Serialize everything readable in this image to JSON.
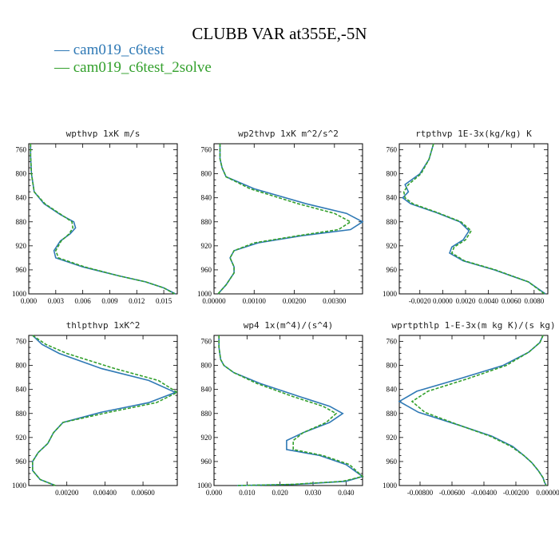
{
  "title": "CLUBB VAR at355E,-5N",
  "legend": [
    {
      "label": "cam019_c6test",
      "color": "#2f79b5",
      "dash": "solid"
    },
    {
      "label": "cam019_c6test_2solve",
      "color": "#33a02c",
      "dash": "dashed"
    }
  ],
  "chart_data": [
    {
      "type": "line",
      "title": "wpthvp  1xK m/s",
      "xlim": [
        0.0,
        0.0165
      ],
      "ylim": [
        750,
        1000
      ],
      "y_ticks": [
        "760",
        "800",
        "840",
        "880",
        "920",
        "960",
        "1000"
      ],
      "x_ticks": [
        {
          "v": 0.0,
          "label": "0.000"
        },
        {
          "v": 0.003,
          "label": "0.003"
        },
        {
          "v": 0.006,
          "label": "0.006"
        },
        {
          "v": 0.009,
          "label": "0.009"
        },
        {
          "v": 0.012,
          "label": "0.012"
        },
        {
          "v": 0.015,
          "label": "0.015"
        }
      ],
      "series": [
        {
          "name": "cam019_c6test",
          "x": [
            0.0002,
            0.0002,
            0.0003,
            0.0006,
            0.0017,
            0.0035,
            0.005,
            0.0052,
            0.0046,
            0.0035,
            0.0028,
            0.003,
            0.006,
            0.01,
            0.013,
            0.015,
            0.0163
          ],
          "y": [
            750,
            770,
            800,
            830,
            850,
            868,
            880,
            890,
            900,
            912,
            928,
            940,
            955,
            970,
            980,
            990,
            1000
          ]
        },
        {
          "name": "cam019_c6test_2solve",
          "x": [
            0.0002,
            0.0002,
            0.0003,
            0.0006,
            0.0018,
            0.0036,
            0.0048,
            0.0049,
            0.0045,
            0.0036,
            0.003,
            0.0033,
            0.0062,
            0.01,
            0.013,
            0.015,
            0.0162
          ],
          "y": [
            750,
            770,
            800,
            830,
            850,
            868,
            880,
            890,
            900,
            912,
            928,
            940,
            955,
            970,
            980,
            990,
            1000
          ]
        }
      ]
    },
    {
      "type": "line",
      "title": "wp2thvp  1xK m^2/s^2",
      "xlim": [
        0.0,
        0.0037
      ],
      "ylim": [
        750,
        1000
      ],
      "y_ticks": [
        "760",
        "800",
        "840",
        "880",
        "920",
        "960",
        "1000"
      ],
      "x_ticks": [
        {
          "v": 0.0,
          "label": "0.00000"
        },
        {
          "v": 0.001,
          "label": "0.00100"
        },
        {
          "v": 0.002,
          "label": "0.00200"
        },
        {
          "v": 0.003,
          "label": "0.00300"
        }
      ],
      "series": [
        {
          "name": "cam019_c6test",
          "x": [
            0.00015,
            0.00015,
            0.0002,
            0.0003,
            0.001,
            0.0023,
            0.0033,
            0.0037,
            0.0034,
            0.0022,
            0.0011,
            0.0005,
            0.0004,
            0.0005,
            0.0005,
            0.0003,
            0.0001
          ],
          "y": [
            750,
            775,
            790,
            805,
            825,
            850,
            866,
            880,
            893,
            903,
            915,
            928,
            940,
            955,
            965,
            985,
            1000
          ]
        },
        {
          "name": "cam019_c6test_2solve",
          "x": [
            0.00015,
            0.00015,
            0.0002,
            0.0003,
            0.0009,
            0.0021,
            0.003,
            0.0034,
            0.0031,
            0.0021,
            0.001,
            0.0005,
            0.0004,
            0.0005,
            0.0005,
            0.0003,
            0.0001
          ],
          "y": [
            750,
            775,
            790,
            805,
            825,
            850,
            866,
            880,
            893,
            903,
            915,
            928,
            940,
            955,
            965,
            985,
            1000
          ]
        }
      ]
    },
    {
      "type": "line",
      "title": "rtpthvp  1E-3x(kg/kg) K",
      "xlim": [
        -0.0038,
        0.0092
      ],
      "ylim": [
        750,
        1000
      ],
      "y_ticks": [
        "760",
        "800",
        "840",
        "880",
        "920",
        "960",
        "1000"
      ],
      "x_ticks": [
        {
          "v": -0.002,
          "label": "-0.0020"
        },
        {
          "v": 0.0,
          "label": "0.0000"
        },
        {
          "v": 0.002,
          "label": "0.0020"
        },
        {
          "v": 0.004,
          "label": "0.0040"
        },
        {
          "v": 0.006,
          "label": "0.0060"
        },
        {
          "v": 0.008,
          "label": "0.0080"
        }
      ],
      "series": [
        {
          "name": "cam019_c6test",
          "x": [
            -0.0008,
            -0.0012,
            -0.002,
            -0.0033,
            -0.003,
            -0.0035,
            -0.0028,
            -0.0005,
            0.0015,
            0.0023,
            0.0018,
            0.0008,
            0.0006,
            0.0018,
            0.0045,
            0.0075,
            0.009
          ],
          "y": [
            750,
            776,
            800,
            818,
            830,
            840,
            850,
            865,
            880,
            895,
            910,
            922,
            932,
            945,
            960,
            980,
            1000
          ]
        },
        {
          "name": "cam019_c6test_2solve",
          "x": [
            -0.0008,
            -0.0012,
            -0.0019,
            -0.003,
            -0.0034,
            -0.0033,
            -0.0026,
            -0.0004,
            0.0016,
            0.0025,
            0.002,
            0.001,
            0.0008,
            0.0019,
            0.0046,
            0.0075,
            0.0089
          ],
          "y": [
            750,
            776,
            800,
            818,
            830,
            840,
            850,
            865,
            880,
            895,
            910,
            922,
            932,
            945,
            960,
            980,
            1000
          ]
        }
      ]
    },
    {
      "type": "line",
      "title": "thlpthvp  1xK^2",
      "xlim": [
        0.0,
        0.0078
      ],
      "ylim": [
        750,
        1000
      ],
      "y_ticks": [
        "760",
        "800",
        "840",
        "880",
        "920",
        "960",
        "1000"
      ],
      "x_ticks": [
        {
          "v": 0.002,
          "label": "0.00200"
        },
        {
          "v": 0.004,
          "label": "0.00400"
        },
        {
          "v": 0.006,
          "label": "0.00600"
        }
      ],
      "series": [
        {
          "name": "cam019_c6test",
          "x": [
            0.0002,
            0.0007,
            0.0016,
            0.0038,
            0.0063,
            0.0077,
            0.0063,
            0.0038,
            0.0018,
            0.0013,
            0.001,
            0.0005,
            0.0002,
            0.0002,
            0.0006,
            0.0014
          ],
          "y": [
            750,
            765,
            780,
            805,
            825,
            845,
            862,
            878,
            895,
            912,
            930,
            945,
            960,
            975,
            990,
            1000
          ]
        },
        {
          "name": "cam019_c6test_2solve",
          "x": [
            0.0002,
            0.0009,
            0.002,
            0.0045,
            0.0068,
            0.0078,
            0.0067,
            0.0042,
            0.0018,
            0.0013,
            0.001,
            0.0005,
            0.0002,
            0.0002,
            0.0006,
            0.0014
          ],
          "y": [
            750,
            765,
            780,
            805,
            825,
            845,
            862,
            878,
            895,
            912,
            930,
            945,
            960,
            975,
            990,
            1000
          ]
        }
      ]
    },
    {
      "type": "line",
      "title": "wp4  1x(m^4)/(s^4)",
      "xlim": [
        0.0,
        0.045
      ],
      "ylim": [
        750,
        1000
      ],
      "y_ticks": [
        "760",
        "800",
        "840",
        "880",
        "920",
        "960",
        "1000"
      ],
      "x_ticks": [
        {
          "v": 0.0,
          "label": "0.000"
        },
        {
          "v": 0.01,
          "label": "0.010"
        },
        {
          "v": 0.02,
          "label": "0.020"
        },
        {
          "v": 0.03,
          "label": "0.030"
        },
        {
          "v": 0.04,
          "label": "0.040"
        }
      ],
      "series": [
        {
          "name": "cam019_c6test",
          "x": [
            0.0015,
            0.0015,
            0.002,
            0.003,
            0.006,
            0.014,
            0.026,
            0.035,
            0.039,
            0.035,
            0.027,
            0.022,
            0.022,
            0.032,
            0.04,
            0.045,
            0.04,
            0.025,
            0.007
          ],
          "y": [
            750,
            770,
            790,
            800,
            812,
            830,
            852,
            868,
            880,
            895,
            912,
            925,
            940,
            950,
            965,
            985,
            993,
            998,
            1000
          ]
        },
        {
          "name": "cam019_c6test_2solve",
          "x": [
            0.0015,
            0.0015,
            0.002,
            0.003,
            0.006,
            0.013,
            0.024,
            0.033,
            0.037,
            0.034,
            0.027,
            0.024,
            0.024,
            0.033,
            0.041,
            0.045,
            0.039,
            0.024,
            0.007
          ],
          "y": [
            750,
            770,
            790,
            800,
            812,
            830,
            852,
            868,
            880,
            895,
            912,
            925,
            940,
            950,
            965,
            985,
            993,
            998,
            1000
          ]
        }
      ]
    },
    {
      "type": "line",
      "title": "wprtpthlp  1-E-3x(m kg K)/(s kg)",
      "xlim": [
        -0.0093,
        0.0
      ],
      "ylim": [
        750,
        1000
      ],
      "y_ticks": [
        "760",
        "800",
        "840",
        "880",
        "920",
        "960",
        "1000"
      ],
      "x_ticks": [
        {
          "v": -0.008,
          "label": "-0.00800"
        },
        {
          "v": -0.006,
          "label": "-0.00600"
        },
        {
          "v": -0.004,
          "label": "-0.00400"
        },
        {
          "v": -0.002,
          "label": "-0.00200"
        },
        {
          "v": 0.0,
          "label": "0.00000"
        }
      ],
      "series": [
        {
          "name": "cam019_c6test",
          "x": [
            -0.0003,
            -0.0005,
            -0.0012,
            -0.0028,
            -0.0055,
            -0.0082,
            -0.0093,
            -0.0081,
            -0.0055,
            -0.0035,
            -0.0022,
            -0.0015,
            -0.001,
            -0.0006,
            -0.0003,
            -0.0002,
            -0.0001
          ],
          "y": [
            750,
            762,
            778,
            800,
            822,
            843,
            860,
            878,
            900,
            918,
            935,
            950,
            962,
            975,
            987,
            995,
            1000
          ]
        },
        {
          "name": "cam019_c6test_2solve",
          "x": [
            -0.0003,
            -0.0005,
            -0.0012,
            -0.0026,
            -0.005,
            -0.0075,
            -0.0085,
            -0.0077,
            -0.0055,
            -0.0036,
            -0.0023,
            -0.0015,
            -0.001,
            -0.0006,
            -0.0003,
            -0.0002,
            -0.0001
          ],
          "y": [
            750,
            762,
            778,
            800,
            822,
            843,
            860,
            878,
            900,
            918,
            935,
            950,
            962,
            975,
            987,
            995,
            1000
          ]
        }
      ]
    }
  ]
}
